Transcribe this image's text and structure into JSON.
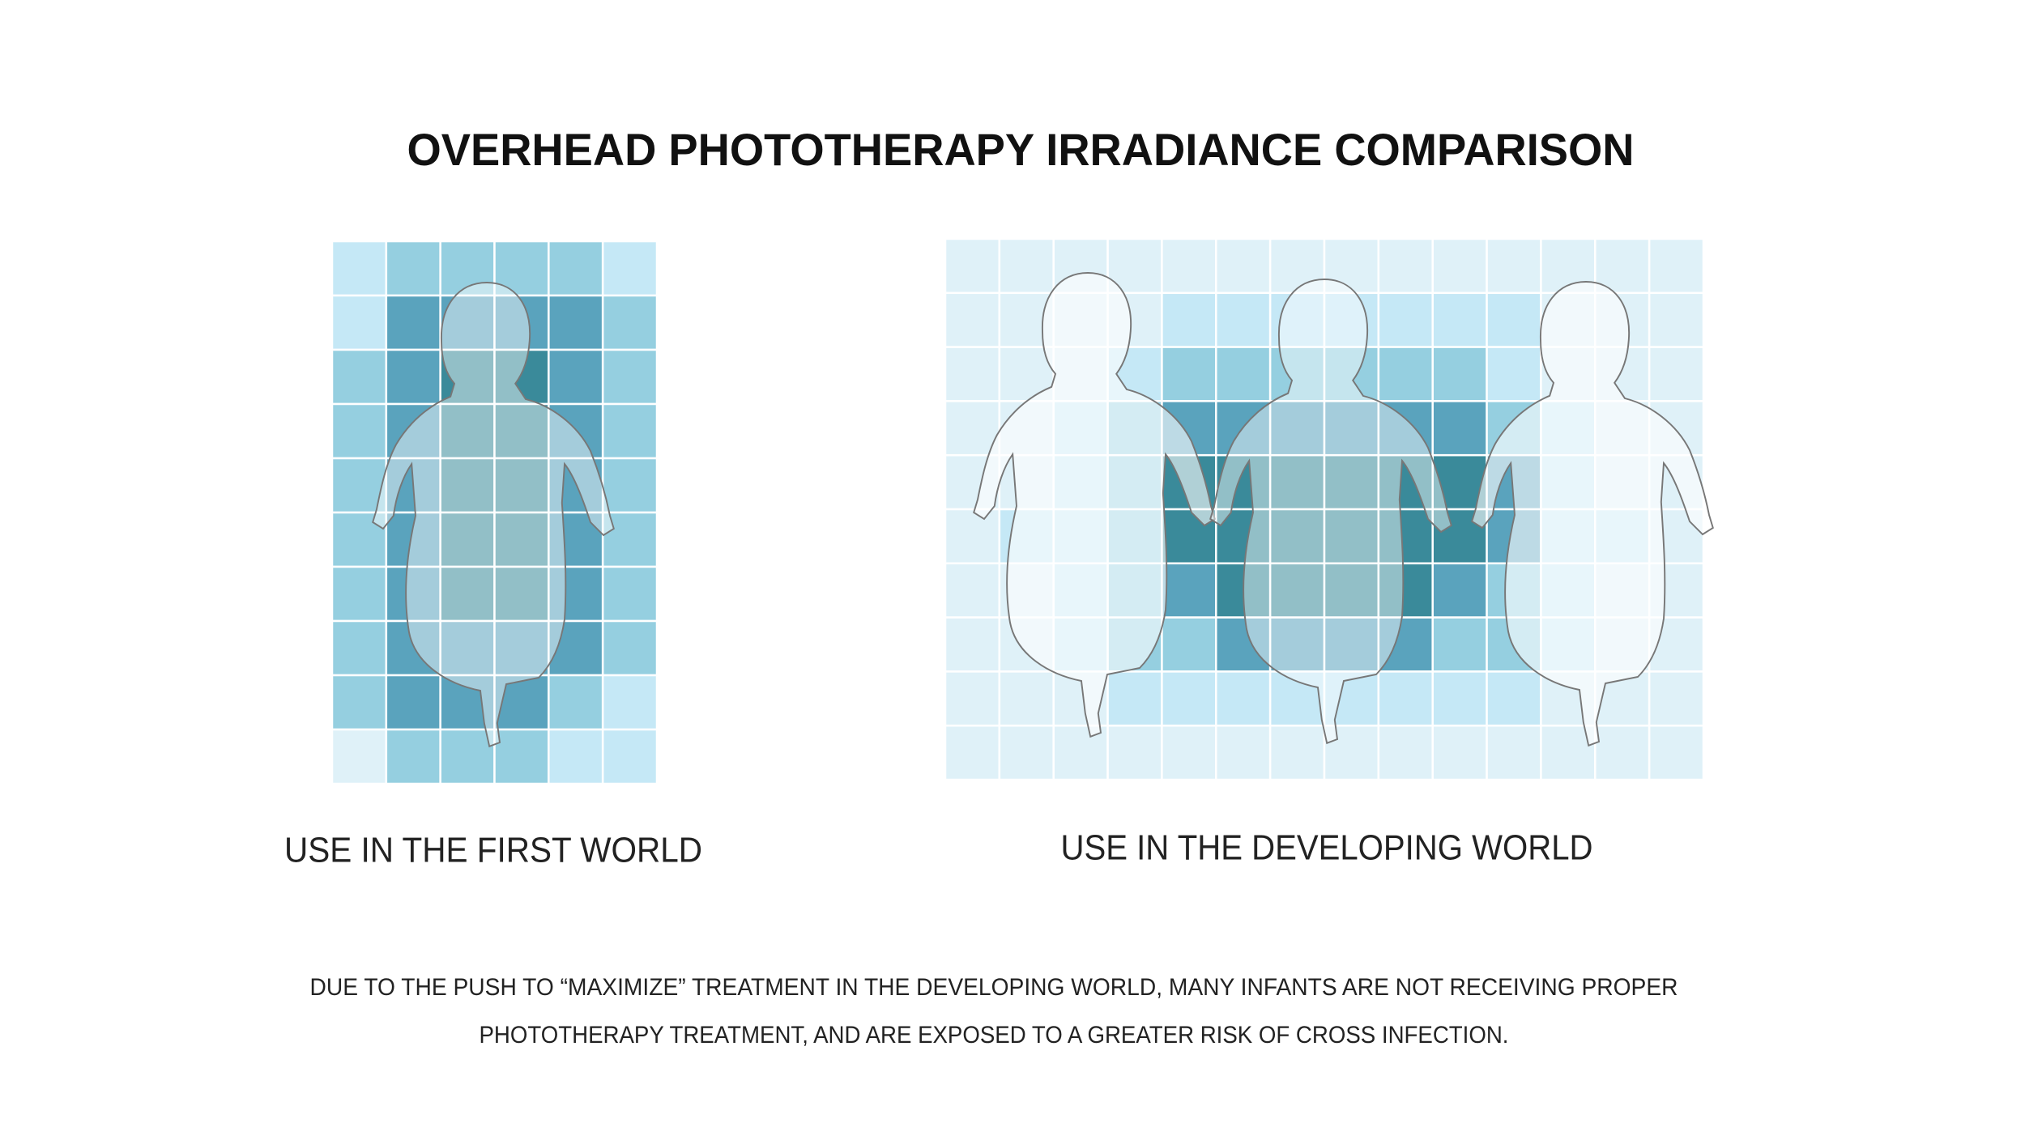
{
  "title": "OVERHEAD PHOTOTHERAPY IRRADIANCE COMPARISON",
  "panels": [
    {
      "caption": "USE IN THE FIRST WORLD"
    },
    {
      "caption": "USE IN THE DEVELOPING WORLD"
    }
  ],
  "note": {
    "lines": [
      "DUE TO THE PUSH TO “MAXIMIZE” TREATMENT IN THE DEVELOPING WORLD, MANY INFANTS ARE NOT RECEIVING PROPER",
      "PHOTOTHERAPY TREATMENT, AND ARE EXPOSED TO A GREATER RISK OF CROSS INFECTION."
    ]
  }
}
